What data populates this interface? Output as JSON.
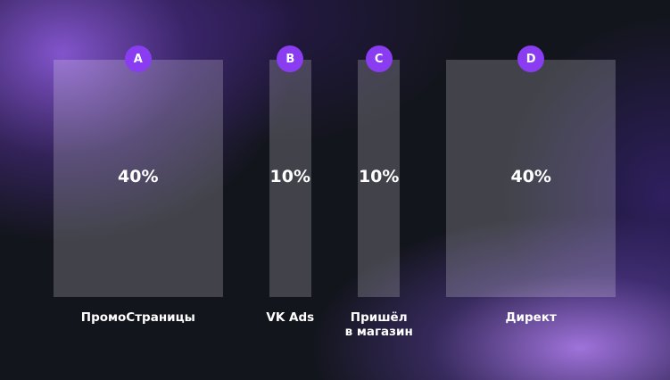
{
  "colors": {
    "badge": "#8a3cf0",
    "text": "#ffffff",
    "background": "#13151d"
  },
  "chart_data": {
    "type": "bar",
    "categories": [
      "A",
      "B",
      "C",
      "D"
    ],
    "badges": [
      "A",
      "B",
      "C",
      "D"
    ],
    "names": [
      "ПромоСтраницы",
      "VK Ads",
      "Пришёл\nв магазин",
      "Директ"
    ],
    "values": [
      40,
      10,
      10,
      40
    ],
    "value_labels": [
      "40%",
      "10%",
      "10%",
      "40%"
    ],
    "unit": "%",
    "encoding": "bar width proportional to value"
  }
}
